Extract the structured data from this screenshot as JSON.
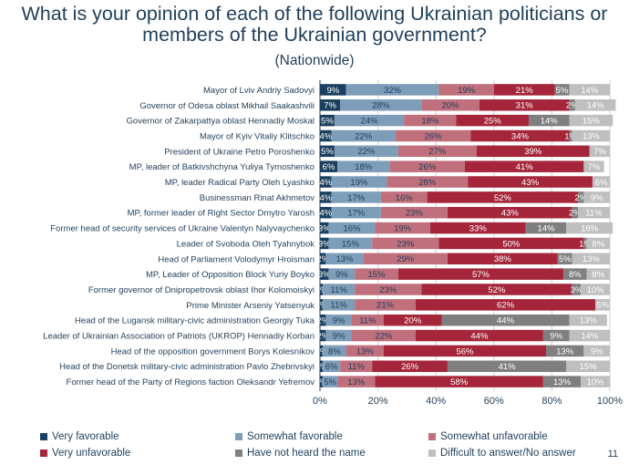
{
  "page": {
    "number": "11"
  },
  "chart_data": {
    "type": "bar",
    "stacked": true,
    "orientation": "horizontal",
    "title": "What is your opinion of each of the following Ukrainian politicians or members of the Ukrainian government?",
    "subtitle": "(Nationwide)",
    "xlim": [
      0,
      100
    ],
    "x_ticks": [
      "0%",
      "20%",
      "40%",
      "60%",
      "80%",
      "100%"
    ],
    "grid": true,
    "legend_position": "bottom",
    "categories": [
      "Mayor of Lviv Andriy Sadovyi",
      "Governor of Odesa oblast Mikhail Saakashvili",
      "Governor of Zakarpattya oblast Hennadiy Moskal",
      "Mayor of Kyiv Vitaliy Klitschko",
      "President of Ukraine Petro Poroshenko",
      "MP, leader of Batkivshchyna Yuliya Tymoshenko",
      "MP, leader Radical Party Oleh Lyashko",
      "Businessman Rinat Akhmetov",
      "MP, former leader of Right Sector Dmytro Yarosh",
      "Former head of security services of Ukraine Valentyn Nalyvaychenko",
      "Leader of Svoboda Oleh Tyahnybok",
      "Head of Parliament Volodymyr Hroisman",
      "MP, Leader of Opposition Block Yuriy Boyko",
      "Former governor of Dnipropetrovsk oblast Ihor Kolomoiskyi",
      "Prime Minister Arseniy Yatsenyuk",
      "Head of the Lugansk military-civic administration Georgiy Tuka",
      "Leader of Ukrainian Association of Patriots (UKROP) Hennadiy Korban",
      "Head of the opposition government Borys Kolesnikov",
      "Head of the Donetsk military-civic administration Pavlo Zhebrivskyi",
      "Former head of the Party of Regions faction Oleksandr Yefremov"
    ],
    "series": [
      {
        "name": "Very favorable",
        "color": "#1b3f5e",
        "text_color": "#ffffff",
        "values": [
          9,
          7,
          5,
          4,
          5,
          6,
          4,
          4,
          4,
          3,
          3,
          2,
          3,
          1,
          1,
          2,
          2,
          1,
          1,
          1
        ]
      },
      {
        "name": "Somewhat favorable",
        "color": "#7d9db9",
        "text_color": "#1f3f5b",
        "values": [
          32,
          28,
          24,
          22,
          22,
          18,
          19,
          17,
          17,
          16,
          15,
          13,
          9,
          11,
          11,
          9,
          9,
          8,
          6,
          5
        ]
      },
      {
        "name": "Somewhat unfavorable",
        "color": "#c06f7c",
        "text_color": "#1f3f5b",
        "values": [
          19,
          20,
          18,
          26,
          27,
          26,
          28,
          16,
          23,
          19,
          23,
          29,
          15,
          23,
          21,
          11,
          22,
          13,
          11,
          13
        ]
      },
      {
        "name": "Very unfavorable",
        "color": "#a5263a",
        "text_color": "#ffffff",
        "values": [
          21,
          31,
          25,
          34,
          39,
          41,
          43,
          52,
          43,
          33,
          50,
          38,
          57,
          52,
          62,
          20,
          44,
          56,
          26,
          58
        ]
      },
      {
        "name": "Have not heard the name",
        "color": "#7f7f7f",
        "text_color": "#ffffff",
        "values": [
          5,
          2,
          14,
          1,
          0,
          0,
          0,
          2,
          2,
          14,
          1,
          5,
          8,
          3,
          0,
          44,
          9,
          13,
          41,
          13
        ]
      },
      {
        "name": "Difficult to answer/No answer",
        "color": "#bfbfbf",
        "text_color": "#ffffff",
        "values": [
          14,
          14,
          15,
          13,
          7,
          7,
          6,
          9,
          11,
          16,
          8,
          13,
          8,
          10,
          5,
          13,
          14,
          9,
          15,
          10
        ]
      }
    ]
  }
}
